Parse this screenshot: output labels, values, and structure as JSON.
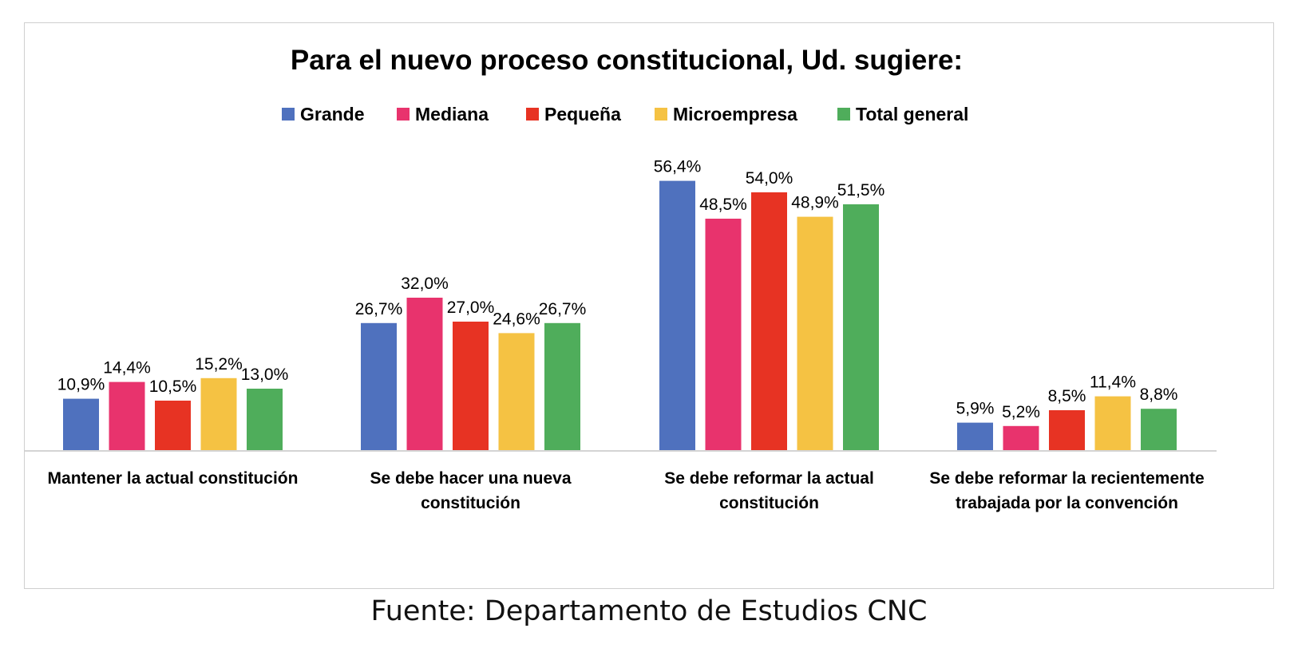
{
  "chart_data": {
    "type": "bar",
    "title": "Para el nuevo proceso constitucional, Ud. sugiere:",
    "legend_position": "top",
    "grid": false,
    "ylim": [
      0,
      60
    ],
    "categories": [
      [
        "Mantener la actual constitución"
      ],
      [
        "Se debe hacer una nueva",
        "constitución"
      ],
      [
        "Se debe reformar la actual",
        "constitución"
      ],
      [
        "Se debe reformar la recientemente",
        "trabajada por la convención"
      ]
    ],
    "series": [
      {
        "name": "Grande",
        "color": "#4f71be",
        "values": [
          10.9,
          26.7,
          56.4,
          5.9
        ],
        "labels": [
          "10,9%",
          "26,7%",
          "56,4%",
          "5,9%"
        ]
      },
      {
        "name": "Mediana",
        "color": "#e8336d",
        "values": [
          14.4,
          32.0,
          48.5,
          5.2
        ],
        "labels": [
          "14,4%",
          "32,0%",
          "48,5%",
          "5,2%"
        ]
      },
      {
        "name": "Pequeña",
        "color": "#e73323",
        "values": [
          10.5,
          27.0,
          54.0,
          8.5
        ],
        "labels": [
          "10,5%",
          "27,0%",
          "54,0%",
          "8,5%"
        ]
      },
      {
        "name": "Microempresa",
        "color": "#f5c243",
        "values": [
          15.2,
          24.6,
          48.9,
          11.4
        ],
        "labels": [
          "15,2%",
          "24,6%",
          "48,9%",
          "11,4%"
        ]
      },
      {
        "name": "Total general",
        "color": "#4fad5b",
        "values": [
          13.0,
          26.7,
          51.5,
          8.8
        ],
        "labels": [
          "13,0%",
          "26,7%",
          "51,5%",
          "8,8%"
        ]
      }
    ]
  },
  "source": "Fuente: Departamento de Estudios CNC"
}
